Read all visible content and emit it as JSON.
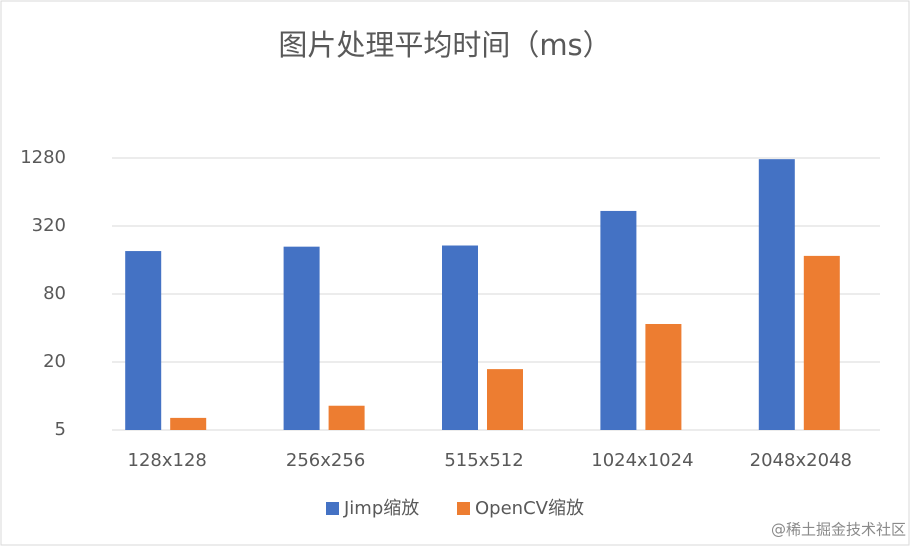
{
  "chart_data": {
    "type": "bar",
    "title": "图片处理平均时间（ms）",
    "categories": [
      "128x128",
      "256x256",
      "515x512",
      "1024x1024",
      "2048x2048"
    ],
    "series": [
      {
        "name": "Jimp缩放",
        "color": "#4472c4",
        "values": [
          192,
          210,
          215,
          435,
          1250
        ]
      },
      {
        "name": "OpenCV缩放",
        "color": "#ed7d31",
        "values": [
          6.4,
          8.2,
          17.3,
          43.4,
          174
        ]
      }
    ],
    "log_scale": true,
    "ylim": [
      5,
      1280
    ],
    "yticks": [
      5,
      20,
      80,
      320,
      1280
    ],
    "grid": true,
    "legend": "bottom",
    "watermark": "@稀土掘金技术社区"
  }
}
